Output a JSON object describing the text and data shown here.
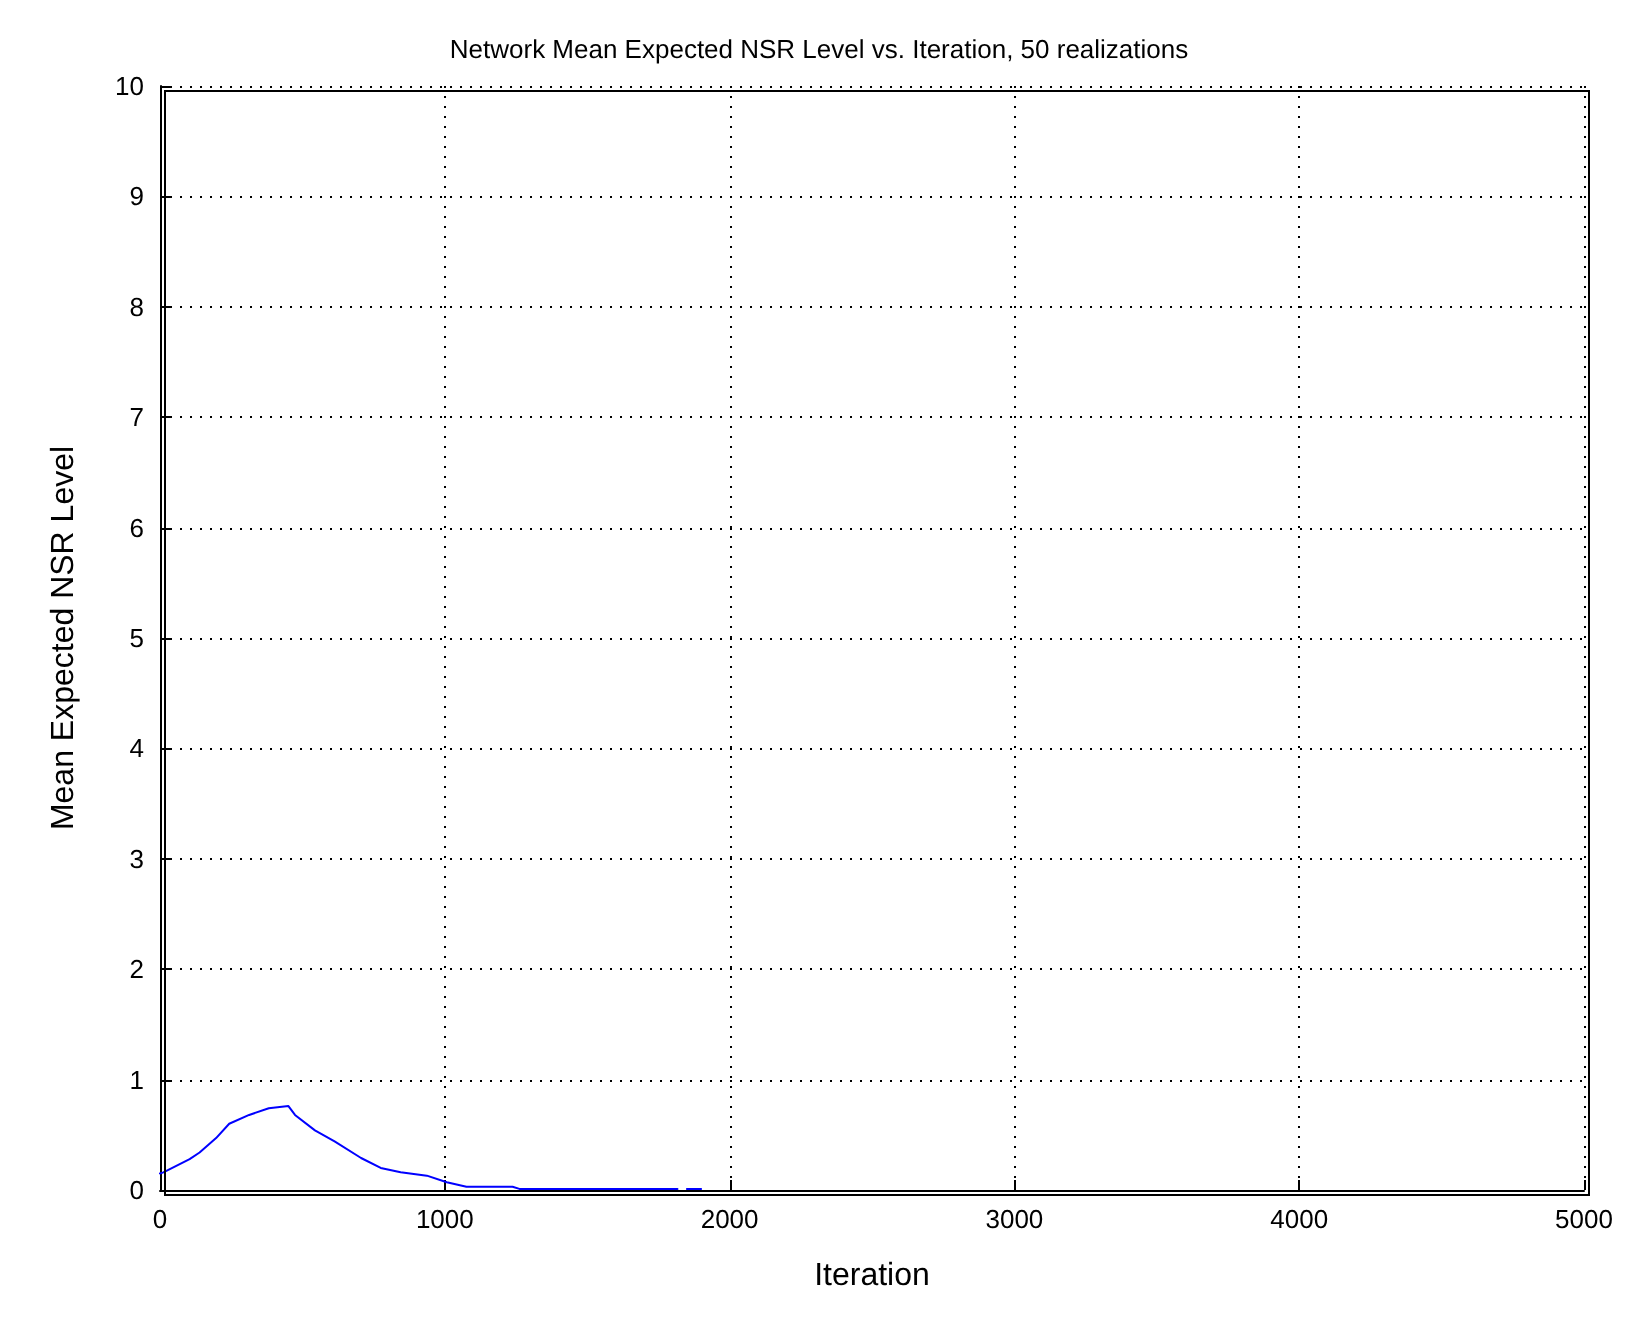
{
  "chart_data": {
    "type": "line",
    "title": "Network Mean Expected NSR Level vs. Iteration, 50 realizations",
    "xlabel": "Iteration",
    "ylabel": "Mean Expected NSR Level",
    "x": [
      0,
      12,
      104,
      139,
      197,
      243,
      313,
      382,
      451,
      474,
      544,
      613,
      706,
      775,
      845,
      937,
      1007,
      1076,
      1238,
      1262,
      1817,
      1835,
      1850,
      1900
    ],
    "series": [
      {
        "color": "#0000ff",
        "values": [
          0.15,
          0.16,
          0.28,
          0.34,
          0.47,
          0.6,
          0.68,
          0.74,
          0.76,
          0.68,
          0.54,
          0.44,
          0.29,
          0.2,
          0.16,
          0.13,
          0.07,
          0.03,
          0.03,
          0.01,
          0.01,
          null,
          0.01,
          0.01
        ]
      }
    ],
    "xlim": [
      0,
      5000
    ],
    "xticks": [
      0,
      1000,
      2000,
      3000,
      4000,
      5000
    ],
    "ylim": [
      0,
      10
    ],
    "yticks": [
      0,
      1,
      2,
      3,
      4,
      5,
      6,
      7,
      8,
      9,
      10
    ],
    "grid": true,
    "marker": "none",
    "line_style": "solid",
    "legend": false
  }
}
